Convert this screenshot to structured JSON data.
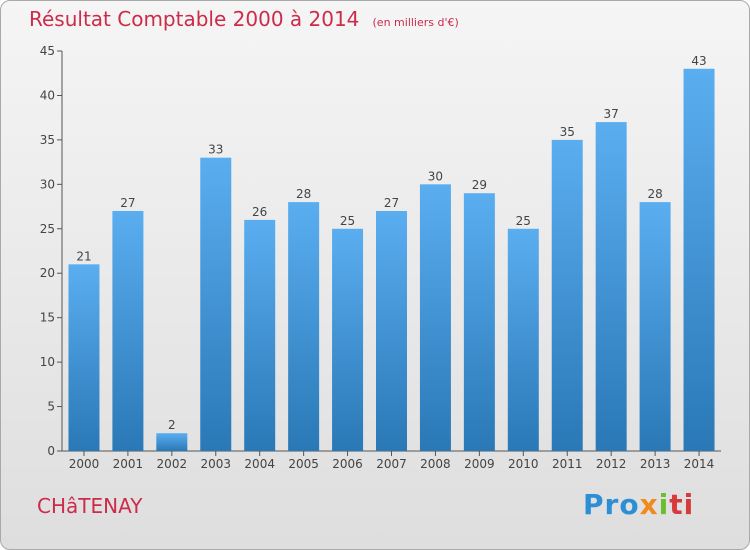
{
  "header": {
    "title": "Résultat Comptable 2000 à 2014",
    "subtitle": "(en milliers d'€)"
  },
  "commune": "CHâTENAY",
  "logo": {
    "text": "Proxiti",
    "parts": [
      "Pro",
      "x",
      "i",
      "ti"
    ]
  },
  "colors": {
    "bar_light": "#5aaef0",
    "bar_dark": "#2a78b6",
    "accent": "#cc2b4a",
    "axis": "#555555"
  },
  "chart_data": {
    "type": "bar",
    "title": "Résultat Comptable 2000 à 2014",
    "subtitle": "(en milliers d'€)",
    "categories": [
      "2000",
      "2001",
      "2002",
      "2003",
      "2004",
      "2005",
      "2006",
      "2007",
      "2008",
      "2009",
      "2010",
      "2011",
      "2012",
      "2013",
      "2014"
    ],
    "values": [
      21,
      27,
      2,
      33,
      26,
      28,
      25,
      27,
      30,
      29,
      25,
      35,
      37,
      28,
      43
    ],
    "yticks": [
      0,
      5,
      10,
      15,
      20,
      25,
      30,
      35,
      40,
      45
    ],
    "ylim": [
      0,
      45
    ],
    "grid": false,
    "legend": "none"
  }
}
